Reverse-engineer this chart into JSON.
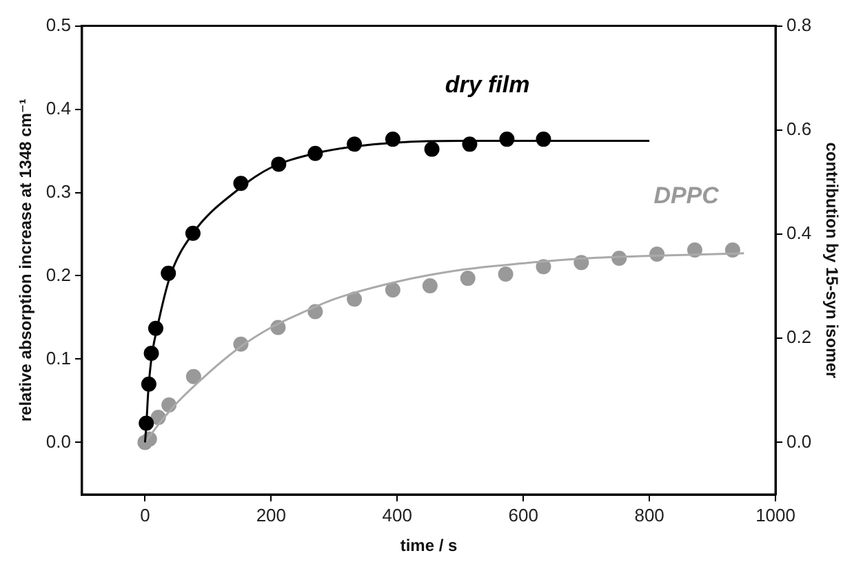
{
  "chart_data": {
    "type": "scatter",
    "xlabel": "time / s",
    "ylabel": "relative absorption increase at 1348 cm⁻¹",
    "y2label": "contribution by 15-syn isomer",
    "xlim": [
      -100,
      1000
    ],
    "xticks": [
      0,
      200,
      400,
      600,
      800,
      1000
    ],
    "ylim": [
      -0.0625,
      0.5
    ],
    "yticks": [
      {
        "value": 0,
        "label": "0.0"
      },
      {
        "value": 0.1,
        "label": "0.1"
      },
      {
        "value": 0.2,
        "label": "0.2"
      },
      {
        "value": 0.3,
        "label": "0.3"
      },
      {
        "value": 0.4,
        "label": "0.4"
      },
      {
        "value": 0.5,
        "label": "0.5"
      }
    ],
    "y2lim": [
      -0.1,
      0.8
    ],
    "y2ticks": [
      {
        "value": 0,
        "label": "0.0"
      },
      {
        "value": 0.2,
        "label": "0.2"
      },
      {
        "value": 0.4,
        "label": "0.4"
      },
      {
        "value": 0.6,
        "label": "0.6"
      },
      {
        "value": 0.8,
        "label": "0.8"
      }
    ],
    "grid": false,
    "legend": false,
    "marker": "circle",
    "series": [
      {
        "type": "line",
        "color": "#000000",
        "marker": "none",
        "x": [
          0,
          2,
          5,
          10,
          20,
          40,
          75,
          150,
          200,
          270,
          330,
          400,
          500,
          600,
          800
        ],
        "values": [
          0,
          0.02,
          0.06,
          0.1,
          0.14,
          0.2,
          0.25,
          0.305,
          0.33,
          0.347,
          0.355,
          0.36,
          0.362,
          0.362,
          0.362
        ]
      },
      {
        "type": "line",
        "color": "#aaaaaa",
        "marker": "none",
        "x": [
          0,
          25,
          50,
          100,
          150,
          200,
          250,
          300,
          400,
          500,
          600,
          700,
          800,
          950
        ],
        "values": [
          0,
          0.025,
          0.047,
          0.083,
          0.114,
          0.138,
          0.156,
          0.172,
          0.193,
          0.207,
          0.215,
          0.221,
          0.224,
          0.227
        ]
      },
      {
        "name": "dry film",
        "color": "#000000",
        "x": [
          2,
          6,
          10,
          17,
          37,
          76,
          152,
          212,
          270,
          332,
          393,
          455,
          515,
          574,
          632
        ],
        "values": [
          0.023,
          0.07,
          0.107,
          0.137,
          0.203,
          0.251,
          0.311,
          0.334,
          0.347,
          0.358,
          0.364,
          0.352,
          0.358,
          0.364,
          0.364
        ]
      },
      {
        "name": "DPPC",
        "color": "#999999",
        "x": [
          0,
          7,
          21,
          38,
          77,
          152,
          211,
          270,
          332,
          393,
          452,
          512,
          572,
          632,
          692,
          752,
          812,
          872,
          932
        ],
        "values": [
          0,
          0.004,
          0.03,
          0.045,
          0.079,
          0.118,
          0.138,
          0.157,
          0.172,
          0.183,
          0.188,
          0.197,
          0.202,
          0.211,
          0.216,
          0.221,
          0.226,
          0.231,
          0.231
        ]
      }
    ]
  }
}
